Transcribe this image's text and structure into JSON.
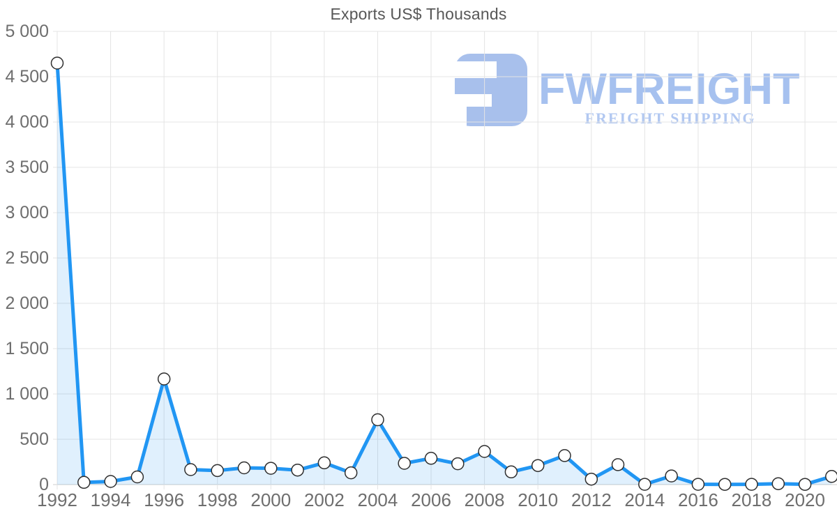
{
  "page": {
    "title": "Exports US$ Thousands"
  },
  "watermark": {
    "brand": "FWFREIGHT",
    "tagline": "FREIGHT SHIPPING"
  },
  "colors": {
    "line": "#2196f3",
    "area_fill": "rgba(33,150,243,0.14)",
    "marker_fill": "#ffffff",
    "marker_stroke": "#2f2f2f",
    "grid": "#e4e4e4",
    "axis_line": "#cccccc",
    "tick_label": "#6e6e6e",
    "title_color": "#575757",
    "logo_blue": "#a8c0ec"
  },
  "chart_data": {
    "type": "line",
    "title": "Exports US$ Thousands",
    "xlabel": "",
    "ylabel": "",
    "x": [
      1992,
      1993,
      1994,
      1995,
      1996,
      1997,
      1998,
      1999,
      2000,
      2001,
      2002,
      2003,
      2004,
      2005,
      2006,
      2007,
      2008,
      2009,
      2010,
      2011,
      2012,
      2013,
      2014,
      2015,
      2016,
      2017,
      2018,
      2019,
      2020,
      2021
    ],
    "values": [
      4650,
      25,
      35,
      85,
      1165,
      165,
      155,
      185,
      180,
      160,
      240,
      130,
      715,
      235,
      290,
      230,
      365,
      140,
      210,
      320,
      60,
      220,
      3,
      95,
      3,
      2,
      3,
      10,
      2,
      90
    ],
    "x_tick_labels": [
      "1992",
      "1994",
      "1996",
      "1998",
      "2000",
      "2002",
      "2004",
      "2006",
      "2008",
      "2010",
      "2012",
      "2014",
      "2016",
      "2018",
      "2020"
    ],
    "y_tick_labels": [
      "0",
      "500",
      "1 000",
      "1 500",
      "2 000",
      "2 500",
      "3 000",
      "3 500",
      "4 000",
      "4 500",
      "5 000"
    ],
    "y_tick_step": 500,
    "ylim": [
      0,
      5000
    ],
    "xlim": [
      1992,
      2021.2
    ],
    "grid": true,
    "legend_position": "none",
    "marker": "circle-white"
  }
}
